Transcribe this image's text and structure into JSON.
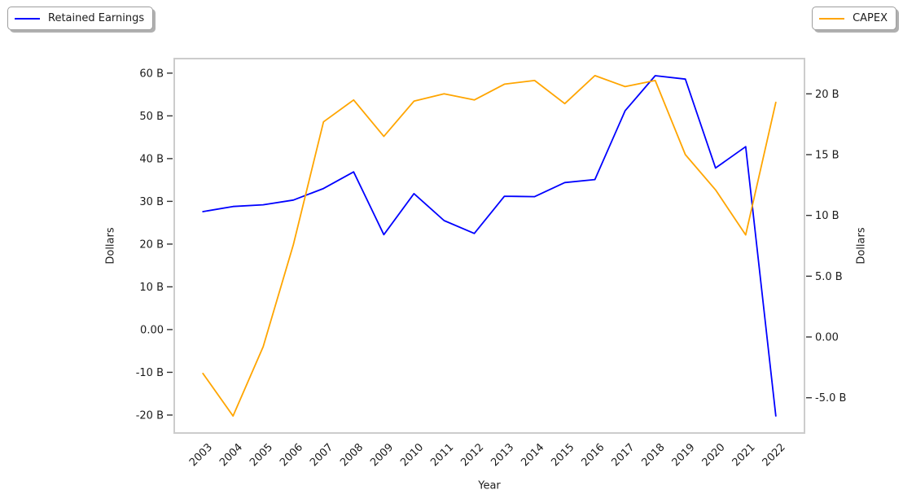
{
  "legend_left": {
    "label": "Retained Earnings",
    "color": "#0000ff"
  },
  "legend_right": {
    "label": "CAPEX",
    "color": "#ffa500"
  },
  "axis_labels": {
    "left": "Dollars",
    "right": "Dollars",
    "bottom": "Year"
  },
  "chart_data": {
    "type": "line",
    "title": "",
    "xlabel": "Year",
    "ylabel_left": "Dollars",
    "ylabel_right": "Dollars",
    "grid": false,
    "legend_position": "outside top-left and top-right",
    "x": [
      2003,
      2004,
      2005,
      2006,
      2007,
      2008,
      2009,
      2010,
      2011,
      2012,
      2013,
      2014,
      2015,
      2016,
      2017,
      2018,
      2019,
      2020,
      2021,
      2022
    ],
    "x_tick_labels": [
      "2003",
      "2004",
      "2005",
      "2006",
      "2007",
      "2008",
      "2009",
      "2010",
      "2011",
      "2012",
      "2013",
      "2014",
      "2015",
      "2016",
      "2017",
      "2018",
      "2019",
      "2020",
      "2021",
      "2022"
    ],
    "x_tick_rotation_deg": 45,
    "xlim": [
      2002.05,
      2022.95
    ],
    "series": [
      {
        "name": "Retained Earnings",
        "axis": "left",
        "color": "#0000ff",
        "unit": "billions of dollars",
        "values": [
          27.6,
          28.8,
          29.2,
          30.3,
          33.0,
          36.9,
          22.2,
          31.8,
          25.5,
          22.5,
          31.2,
          31.1,
          34.4,
          35.1,
          51.2,
          59.4,
          58.6,
          37.8,
          42.8,
          -20.2
        ]
      },
      {
        "name": "CAPEX",
        "axis": "right",
        "color": "#ffa500",
        "unit": "billions of dollars",
        "values": [
          -3.0,
          -6.5,
          -0.8,
          7.6,
          17.7,
          19.5,
          16.5,
          19.4,
          20.0,
          19.5,
          20.8,
          21.1,
          19.2,
          21.5,
          20.6,
          21.1,
          15.0,
          12.1,
          8.4,
          19.3
        ]
      }
    ],
    "left_axis": {
      "tick_values": [
        60,
        50,
        40,
        30,
        20,
        10,
        0,
        -10,
        -20
      ],
      "tick_labels": [
        "60 B",
        "50 B",
        "40 B",
        "30 B",
        "20 B",
        "10 B",
        "0.00",
        "-10 B",
        "-20 B"
      ],
      "lim": [
        -24.2,
        63.4
      ]
    },
    "right_axis": {
      "tick_values": [
        20,
        15,
        10,
        5,
        0,
        -5
      ],
      "tick_labels": [
        "20 B",
        "15 B",
        "10 B",
        "5.0 B",
        "0.00",
        "-5.0 B"
      ],
      "lim": [
        -7.9,
        22.9
      ]
    }
  }
}
